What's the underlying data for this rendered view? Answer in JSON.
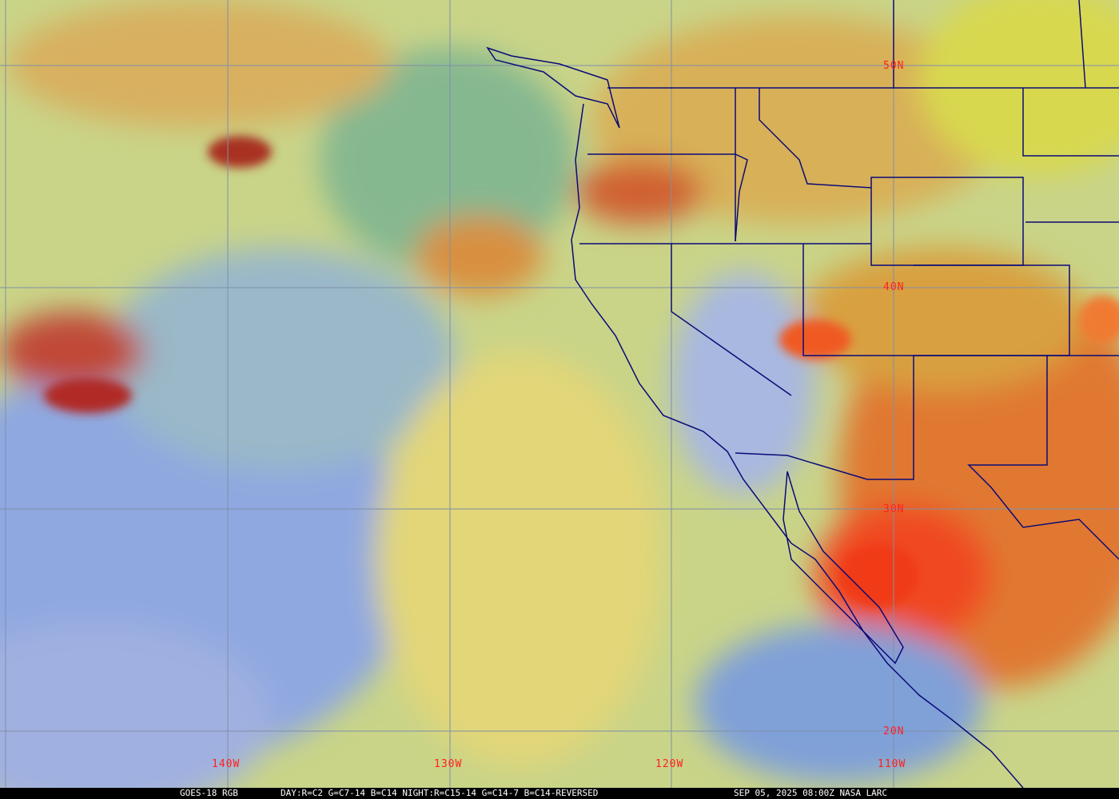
{
  "caption": {
    "satellite": "GOES-18 RGB",
    "recipe": "DAY:R=C2 G=C7-14 B=C14 NIGHT:R=C15-14 G=C14-7 B=C14-REVERSED",
    "timestamp": "SEP 05, 2025 08:00Z NASA LARC"
  },
  "grid": {
    "latitude_labels": [
      "50N",
      "40N",
      "30N",
      "20N"
    ],
    "longitude_labels": [
      "140W",
      "130W",
      "120W",
      "110W"
    ],
    "label_color": "#ff2020",
    "grid_color": "#7f8fa8",
    "boundary_color": "#0a0a78"
  }
}
